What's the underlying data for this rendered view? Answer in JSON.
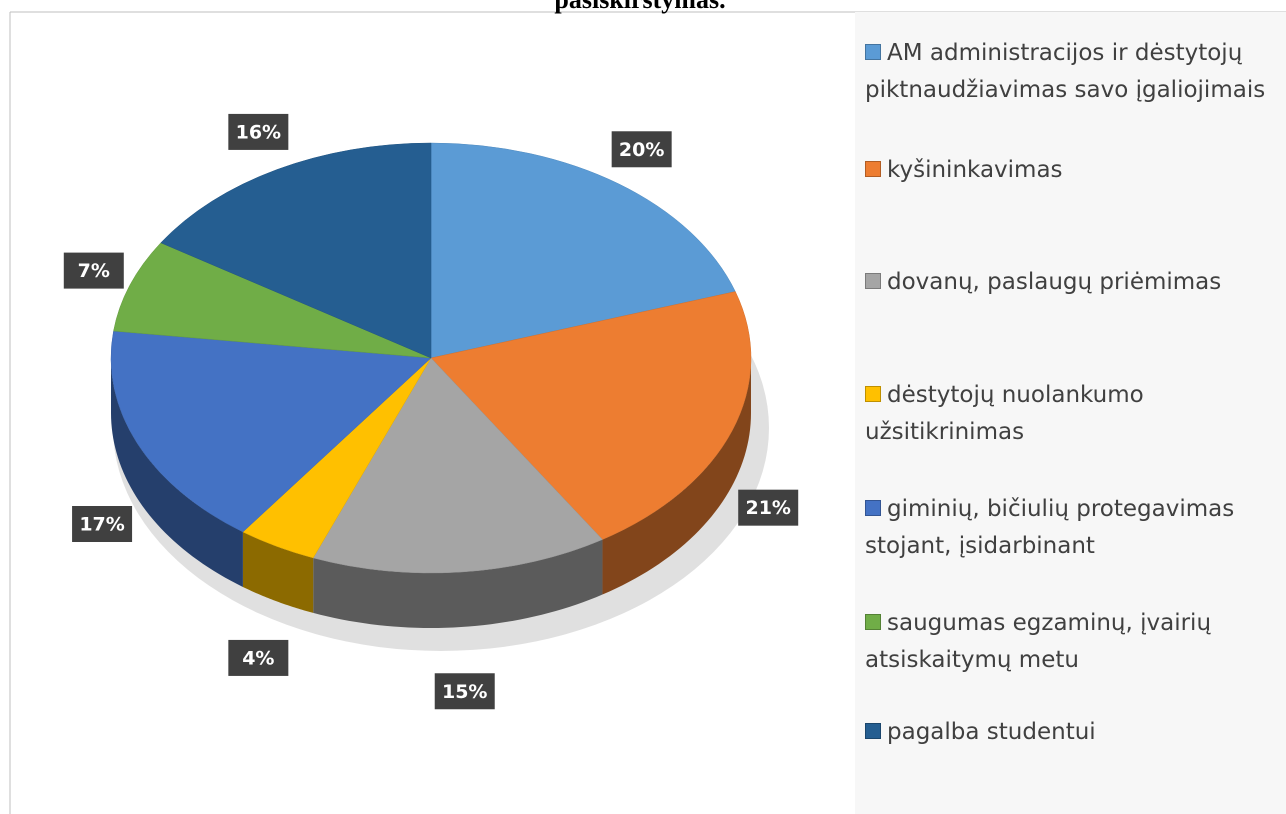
{
  "chart_data": {
    "type": "pie3d",
    "title": "pasiskirstymas.",
    "series": [
      {
        "name": "AM administracijos ir dėstytojų piktnaudžiavimas savo įgaliojimais",
        "color": "#5b9bd5",
        "values": [
          20
        ],
        "value_labels": [
          "20%"
        ]
      },
      {
        "name": "kyšininkavimas",
        "color": "#ed7d31",
        "values": [
          21
        ],
        "value_labels": [
          "21%"
        ]
      },
      {
        "name": "dovanų, paslaugų priėmimas",
        "color": "#a5a5a5",
        "values": [
          15
        ],
        "value_labels": [
          "15%"
        ]
      },
      {
        "name": "dėstytojų nuolankumo užsitikrinimas",
        "color": "#ffc000",
        "values": [
          4
        ],
        "value_labels": [
          "4%"
        ]
      },
      {
        "name": "giminių, bičiulių protegavimas stojant, įsidarbinant",
        "color": "#4472c4",
        "values": [
          17
        ],
        "value_labels": [
          "17%"
        ]
      },
      {
        "name": "saugumas egzaminų, įvairių atsiskaitymų metu",
        "color": "#70ad47",
        "values": [
          7
        ],
        "value_labels": [
          "7%"
        ]
      },
      {
        "name": "pagalba studentui",
        "color": "#255e91",
        "values": [
          16
        ],
        "value_labels": [
          "16%"
        ]
      }
    ],
    "legend": "right"
  }
}
